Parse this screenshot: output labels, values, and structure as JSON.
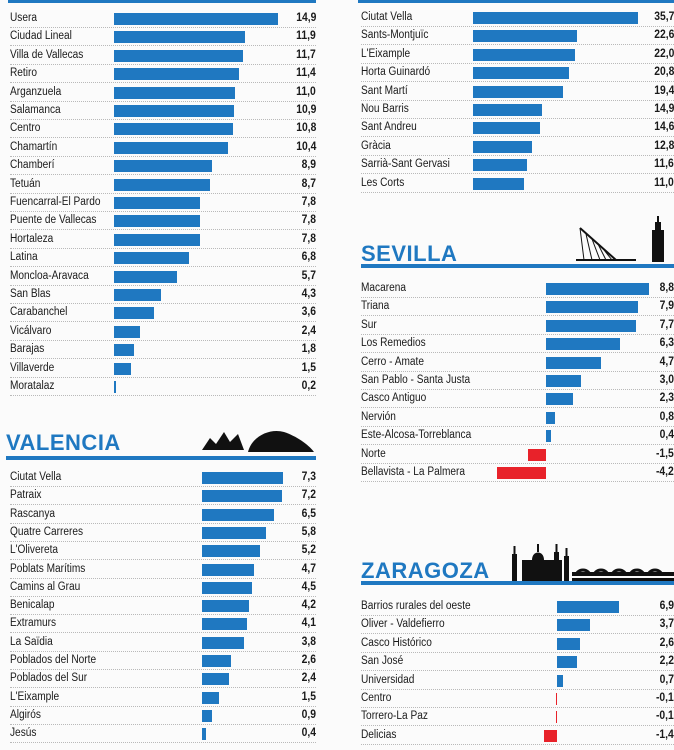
{
  "colors": {
    "accent": "#1f78c1",
    "positive": "#1f78c1",
    "negative": "#e8222a"
  },
  "madrid": {
    "rows": [
      {
        "label": "Usera",
        "value": 14.9,
        "display": "14,9"
      },
      {
        "label": "Ciudad Lineal",
        "value": 11.9,
        "display": "11,9"
      },
      {
        "label": "Villa de Vallecas",
        "value": 11.7,
        "display": "11,7"
      },
      {
        "label": "Retiro",
        "value": 11.4,
        "display": "11,4"
      },
      {
        "label": "Arganzuela",
        "value": 11.0,
        "display": "11,0"
      },
      {
        "label": "Salamanca",
        "value": 10.9,
        "display": "10,9"
      },
      {
        "label": "Centro",
        "value": 10.8,
        "display": "10,8"
      },
      {
        "label": "Chamartín",
        "value": 10.4,
        "display": "10,4"
      },
      {
        "label": "Chamberí",
        "value": 8.9,
        "display": "8,9"
      },
      {
        "label": "Tetuán",
        "value": 8.7,
        "display": "8,7"
      },
      {
        "label": "Fuencarral-El Pardo",
        "value": 7.8,
        "display": "7,8"
      },
      {
        "label": "Puente de Vallecas",
        "value": 7.8,
        "display": "7,8"
      },
      {
        "label": "Hortaleza",
        "value": 7.8,
        "display": "7,8"
      },
      {
        "label": "Latina",
        "value": 6.8,
        "display": "6,8"
      },
      {
        "label": "Moncloa-Aravaca",
        "value": 5.7,
        "display": "5,7"
      },
      {
        "label": "San Blas",
        "value": 4.3,
        "display": "4,3"
      },
      {
        "label": "Carabanchel",
        "value": 3.6,
        "display": "3,6"
      },
      {
        "label": "Vicálvaro",
        "value": 2.4,
        "display": "2,4"
      },
      {
        "label": "Barajas",
        "value": 1.8,
        "display": "1,8"
      },
      {
        "label": "Villaverde",
        "value": 1.5,
        "display": "1,5"
      },
      {
        "label": "Moratalaz",
        "value": 0.2,
        "display": "0,2"
      }
    ]
  },
  "valencia": {
    "title": "VALENCIA",
    "rows": [
      {
        "label": "Ciutat Vella",
        "value": 7.3,
        "display": "7,3"
      },
      {
        "label": "Patraix",
        "value": 7.2,
        "display": "7,2"
      },
      {
        "label": "Rascanya",
        "value": 6.5,
        "display": "6,5"
      },
      {
        "label": "Quatre Carreres",
        "value": 5.8,
        "display": "5,8"
      },
      {
        "label": "L'Olivereta",
        "value": 5.2,
        "display": "5,2"
      },
      {
        "label": "Poblats Marítims",
        "value": 4.7,
        "display": "4,7"
      },
      {
        "label": "Camins al Grau",
        "value": 4.5,
        "display": "4,5"
      },
      {
        "label": "Benicalap",
        "value": 4.2,
        "display": "4,2"
      },
      {
        "label": "Extramurs",
        "value": 4.1,
        "display": "4,1"
      },
      {
        "label": "La Saïdia",
        "value": 3.8,
        "display": "3,8"
      },
      {
        "label": "Poblados del Norte",
        "value": 2.6,
        "display": "2,6"
      },
      {
        "label": "Poblados del Sur",
        "value": 2.4,
        "display": "2,4"
      },
      {
        "label": "L'Eixample",
        "value": 1.5,
        "display": "1,5"
      },
      {
        "label": "Algirós",
        "value": 0.9,
        "display": "0,9"
      },
      {
        "label": "Jesús",
        "value": 0.4,
        "display": "0,4"
      }
    ]
  },
  "barcelona": {
    "rows": [
      {
        "label": "Ciutat Vella",
        "value": 35.7,
        "display": "35,7"
      },
      {
        "label": "Sants-Montjuïc",
        "value": 22.6,
        "display": "22,6"
      },
      {
        "label": "L'Eixample",
        "value": 22.0,
        "display": "22,0"
      },
      {
        "label": "Horta Guinardó",
        "value": 20.8,
        "display": "20,8"
      },
      {
        "label": "Sant Martí",
        "value": 19.4,
        "display": "19,4"
      },
      {
        "label": "Nou Barris",
        "value": 14.9,
        "display": "14,9"
      },
      {
        "label": "Sant Andreu",
        "value": 14.6,
        "display": "14,6"
      },
      {
        "label": "Gràcia",
        "value": 12.8,
        "display": "12,8"
      },
      {
        "label": "Sarrià-Sant Gervasi",
        "value": 11.6,
        "display": "11,6"
      },
      {
        "label": "Les Corts",
        "value": 11.0,
        "display": "11,0"
      }
    ]
  },
  "sevilla": {
    "title": "SEVILLA",
    "rows": [
      {
        "label": "Macarena",
        "value": 8.8,
        "display": "8,8"
      },
      {
        "label": "Triana",
        "value": 7.9,
        "display": "7,9"
      },
      {
        "label": "Sur",
        "value": 7.7,
        "display": "7,7"
      },
      {
        "label": "Los Remedios",
        "value": 6.3,
        "display": "6,3"
      },
      {
        "label": "Cerro - Amate",
        "value": 4.7,
        "display": "4,7"
      },
      {
        "label": "San Pablo - Santa Justa",
        "value": 3.0,
        "display": "3,0"
      },
      {
        "label": "Casco Antiguo",
        "value": 2.3,
        "display": "2,3"
      },
      {
        "label": "Nervión",
        "value": 0.8,
        "display": "0,8"
      },
      {
        "label": "Este-Alcosa-Torreblanca",
        "value": 0.4,
        "display": "0,4"
      },
      {
        "label": "Norte",
        "value": -1.5,
        "display": "-1,5"
      },
      {
        "label": "Bellavista - La Palmera",
        "value": -4.2,
        "display": "-4,2"
      }
    ]
  },
  "zaragoza": {
    "title": "ZARAGOZA",
    "rows": [
      {
        "label": "Barrios rurales del oeste",
        "value": 6.9,
        "display": "6,9"
      },
      {
        "label": "Oliver - Valdefierro",
        "value": 3.7,
        "display": "3,7"
      },
      {
        "label": "Casco Histórico",
        "value": 2.6,
        "display": "2,6"
      },
      {
        "label": "San José",
        "value": 2.2,
        "display": "2,2"
      },
      {
        "label": "Universidad",
        "value": 0.7,
        "display": "0,7"
      },
      {
        "label": "Centro",
        "value": -0.1,
        "display": "-0,1"
      },
      {
        "label": "Torrero-La Paz",
        "value": -0.1,
        "display": "-0,1"
      },
      {
        "label": "Delicias",
        "value": -1.4,
        "display": "-1,4"
      }
    ]
  },
  "chart_data": [
    {
      "type": "bar",
      "categories": [
        "Usera",
        "Ciudad Lineal",
        "Villa de Vallecas",
        "Retiro",
        "Arganzuela",
        "Salamanca",
        "Centro",
        "Chamartín",
        "Chamberí",
        "Tetuán",
        "Fuencarral-El Pardo",
        "Puente de Vallecas",
        "Hortaleza",
        "Latina",
        "Moncloa-Aravaca",
        "San Blas",
        "Carabanchel",
        "Vicálvaro",
        "Barajas",
        "Villaverde",
        "Moratalaz"
      ],
      "values": [
        14.9,
        11.9,
        11.7,
        11.4,
        11.0,
        10.9,
        10.8,
        10.4,
        8.9,
        8.7,
        7.8,
        7.8,
        7.8,
        6.8,
        5.7,
        4.3,
        3.6,
        2.4,
        1.8,
        1.5,
        0.2
      ]
    },
    {
      "type": "bar",
      "title": "VALENCIA",
      "categories": [
        "Ciutat Vella",
        "Patraix",
        "Rascanya",
        "Quatre Carreres",
        "L'Olivereta",
        "Poblats Marítims",
        "Camins al Grau",
        "Benicalap",
        "Extramurs",
        "La Saïdia",
        "Poblados del Norte",
        "Poblados del Sur",
        "L'Eixample",
        "Algirós",
        "Jesús"
      ],
      "values": [
        7.3,
        7.2,
        6.5,
        5.8,
        5.2,
        4.7,
        4.5,
        4.2,
        4.1,
        3.8,
        2.6,
        2.4,
        1.5,
        0.9,
        0.4
      ]
    },
    {
      "type": "bar",
      "categories": [
        "Ciutat Vella",
        "Sants-Montjuïc",
        "L'Eixample",
        "Horta Guinardó",
        "Sant Martí",
        "Nou Barris",
        "Sant Andreu",
        "Gràcia",
        "Sarrià-Sant Gervasi",
        "Les Corts"
      ],
      "values": [
        35.7,
        22.6,
        22.0,
        20.8,
        19.4,
        14.9,
        14.6,
        12.8,
        11.6,
        11.0
      ]
    },
    {
      "type": "bar",
      "title": "SEVILLA",
      "categories": [
        "Macarena",
        "Triana",
        "Sur",
        "Los Remedios",
        "Cerro - Amate",
        "San Pablo - Santa Justa",
        "Casco Antiguo",
        "Nervión",
        "Este-Alcosa-Torreblanca",
        "Norte",
        "Bellavista - La Palmera"
      ],
      "values": [
        8.8,
        7.9,
        7.7,
        6.3,
        4.7,
        3.0,
        2.3,
        0.8,
        0.4,
        -1.5,
        -4.2
      ]
    },
    {
      "type": "bar",
      "title": "ZARAGOZA",
      "categories": [
        "Barrios rurales del oeste",
        "Oliver - Valdefierro",
        "Casco Histórico",
        "San José",
        "Universidad",
        "Centro",
        "Torrero-La Paz",
        "Delicias"
      ],
      "values": [
        6.9,
        3.7,
        2.6,
        2.2,
        0.7,
        -0.1,
        -0.1,
        -1.4
      ]
    }
  ]
}
